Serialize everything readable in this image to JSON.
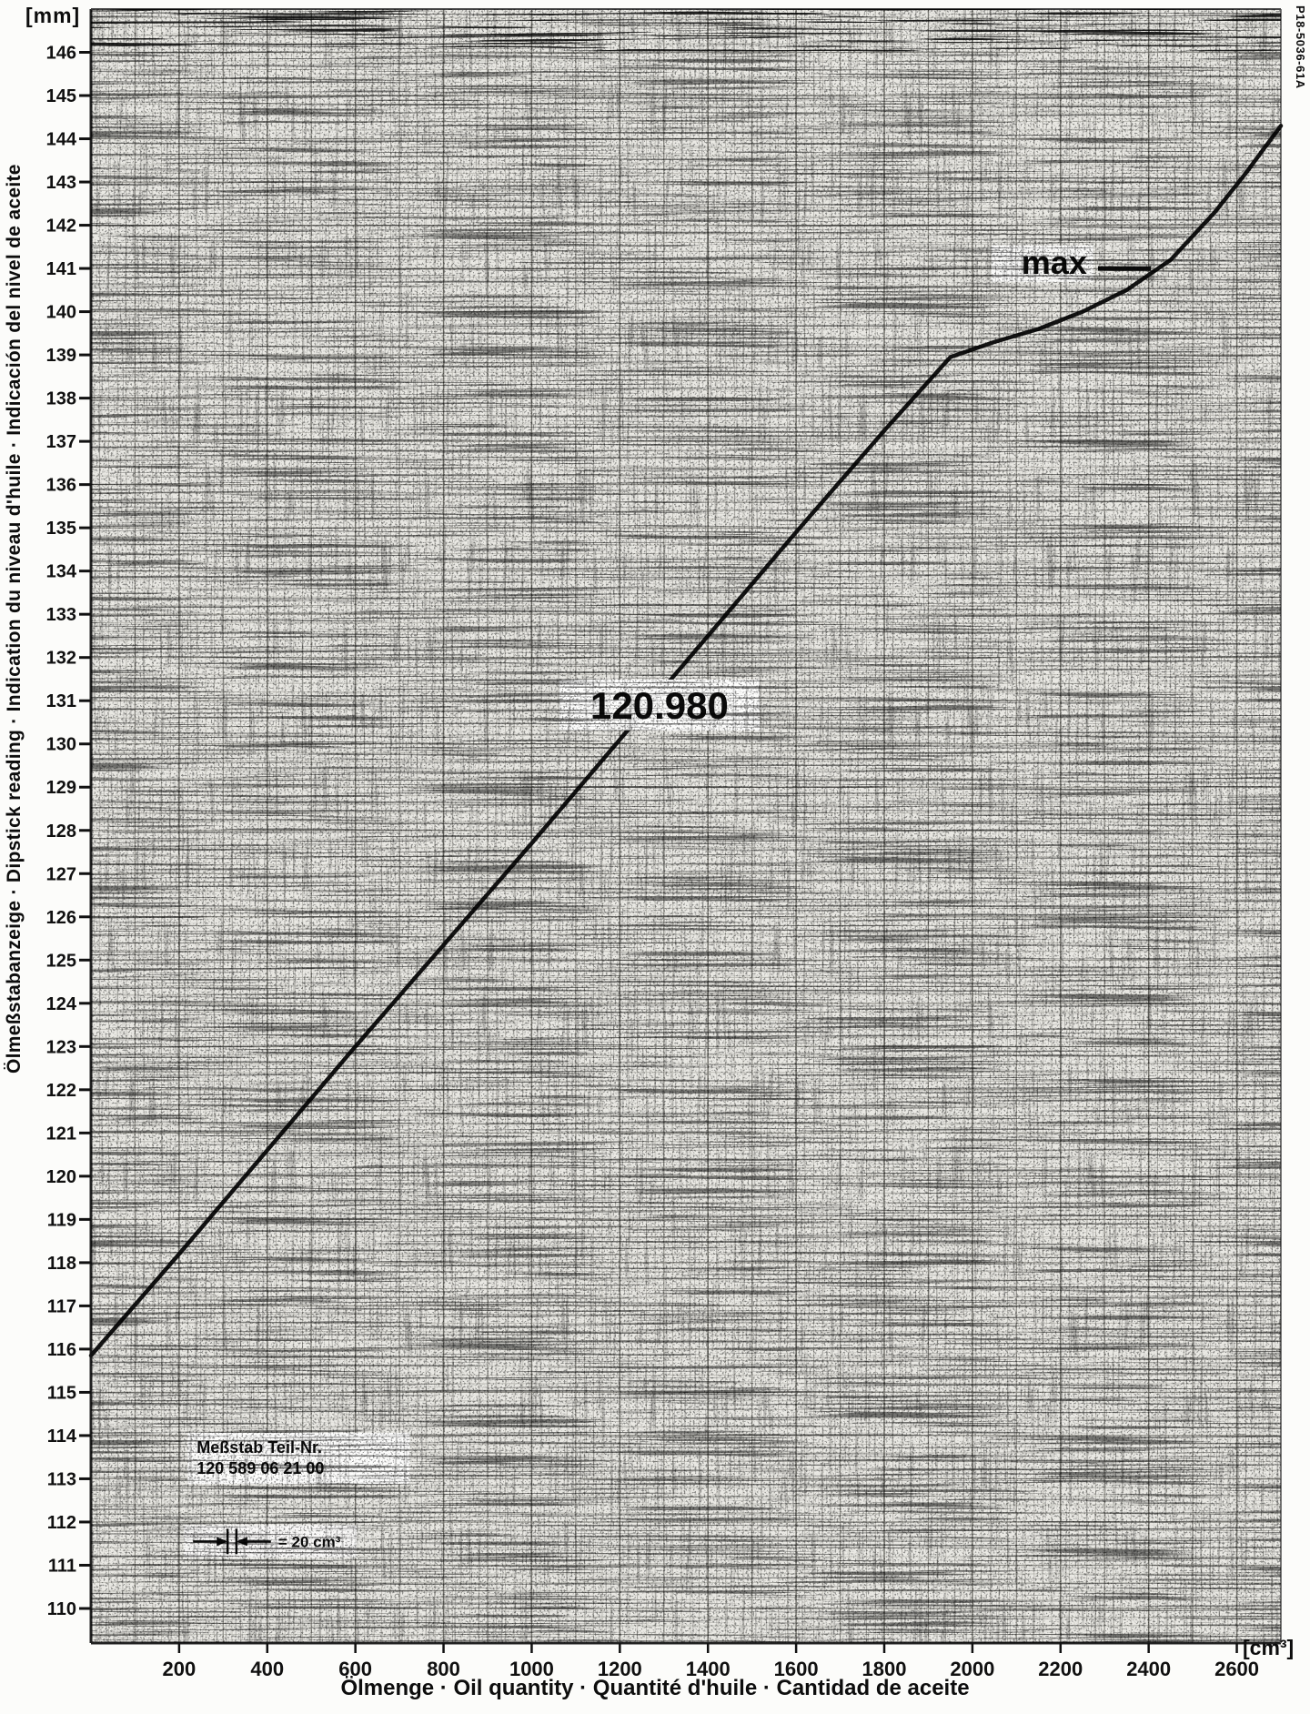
{
  "doc_ref": "P18-5036-61A",
  "chart_data": {
    "type": "line",
    "title": "Dipstick reading versus oil quantity for engine 120.980",
    "y_unit": "[mm]",
    "x_unit": "[cm³]",
    "ylabel": "Ölmeßstabanzeige · Dipstick reading · Indication du niveau d'huile · Indicación del nivel de aceite",
    "xlabel": "Ölmenge · Oil quantity · Quantité d'huile · Cantidad de aceite",
    "xlim": [
      0,
      2700
    ],
    "ylim": [
      109.2,
      147.0
    ],
    "x_ticks": [
      200,
      400,
      600,
      800,
      1000,
      1200,
      1400,
      1600,
      1800,
      2000,
      2200,
      2400,
      2600
    ],
    "y_ticks": [
      110,
      111,
      112,
      113,
      114,
      115,
      116,
      117,
      118,
      119,
      120,
      121,
      122,
      123,
      124,
      125,
      126,
      127,
      128,
      129,
      130,
      131,
      132,
      133,
      134,
      135,
      136,
      137,
      138,
      139,
      140,
      141,
      142,
      143,
      144,
      145,
      146
    ],
    "grid": {
      "x_minor": 20,
      "x_medium": 100,
      "x_major": 200,
      "y_minor": 0.2,
      "y_major": 1
    },
    "series": [
      {
        "name": "dipstick-reading-curve",
        "points": [
          [
            0,
            115.85
          ],
          [
            200,
            118.2
          ],
          [
            400,
            120.6
          ],
          [
            600,
            123.0
          ],
          [
            800,
            125.35
          ],
          [
            1000,
            127.7
          ],
          [
            1200,
            130.1
          ],
          [
            1400,
            132.5
          ],
          [
            1600,
            134.9
          ],
          [
            1800,
            137.25
          ],
          [
            1950,
            138.95
          ],
          [
            2050,
            139.3
          ],
          [
            2150,
            139.6
          ],
          [
            2250,
            140.0
          ],
          [
            2350,
            140.5
          ],
          [
            2450,
            141.2
          ],
          [
            2550,
            142.3
          ],
          [
            2620,
            143.2
          ],
          [
            2700,
            144.3
          ]
        ]
      }
    ],
    "annotations": {
      "engine_label": {
        "text": "120.980",
        "x": 1290,
        "y": 130.9
      },
      "max_label": {
        "text": "max",
        "x": 2260,
        "y": 141.15,
        "leader": {
          "x1": 2285,
          "x2": 2405,
          "y": 141.0
        }
      },
      "part_box": {
        "lines": [
          "Meßstab  Teil-Nr.",
          "120  589 06 21 00"
        ],
        "x": 240,
        "y": 113.6
      },
      "scale_marker": {
        "text": "= 20 cm³",
        "x1": 310,
        "x2": 330,
        "y": 111.55,
        "span_cm3": 20
      }
    }
  }
}
